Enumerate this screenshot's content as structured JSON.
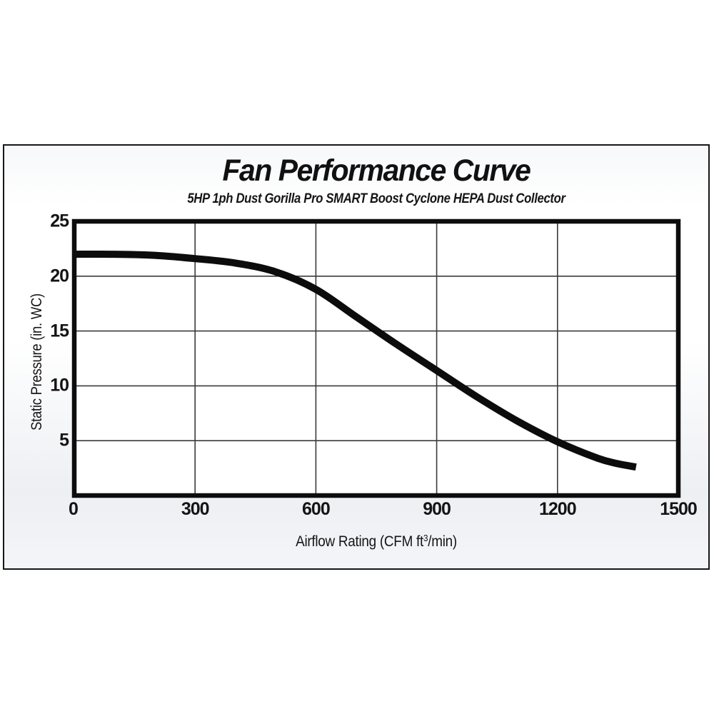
{
  "colors": {
    "curve": "#0c0c0c",
    "plot_border": "#0d0d0d",
    "grid": "#3a3a3a",
    "text": "#141414",
    "plot_fill": "#ffffff"
  },
  "chart_data": {
    "type": "line",
    "title": "Fan Performance Curve",
    "subtitle": "5HP 1ph Dust Gorilla Pro SMART Boost Cyclone HEPA Dust Collector",
    "ylabel": "Static Pressure (in. WC)",
    "xlabel": {
      "prefix": "Airflow Rating (CFM ft",
      "sup": "3",
      "suffix": "/min)"
    },
    "xlim": [
      0,
      1500
    ],
    "ylim": [
      0,
      25
    ],
    "x_ticks": [
      0,
      300,
      600,
      900,
      1200,
      1500
    ],
    "y_ticks": [
      25,
      20,
      15,
      10,
      5
    ],
    "grid": true,
    "legend": false,
    "series": [
      {
        "name": "fan-performance",
        "x": [
          0,
          100,
          200,
          300,
          400,
          500,
          600,
          700,
          800,
          900,
          1000,
          1100,
          1200,
          1300,
          1350,
          1395
        ],
        "y": [
          22.0,
          22.0,
          21.9,
          21.6,
          21.2,
          20.4,
          18.8,
          16.3,
          13.8,
          11.4,
          9.0,
          6.8,
          4.9,
          3.4,
          2.9,
          2.6
        ]
      }
    ]
  }
}
